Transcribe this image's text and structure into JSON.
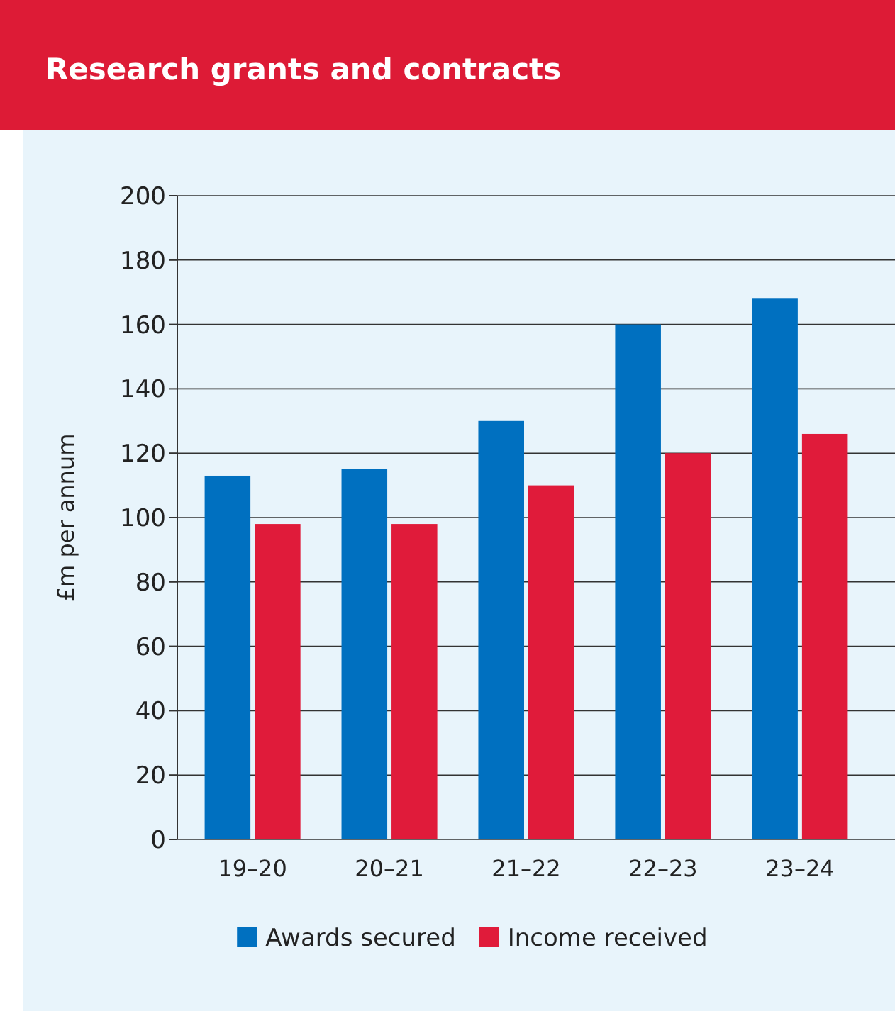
{
  "chart_data": {
    "type": "bar",
    "title": "Research grants and contracts",
    "ylabel": "£m per annum",
    "categories": [
      "19–20",
      "20–21",
      "21–22",
      "22–23",
      "23–24"
    ],
    "series": [
      {
        "name": "Awards secured",
        "color": "#0070c0",
        "values": [
          113,
          115,
          130,
          160,
          168
        ]
      },
      {
        "name": "Income received",
        "color": "#e01b3a",
        "values": [
          98,
          98,
          110,
          120,
          126
        ]
      }
    ],
    "ylim": [
      0,
      200
    ],
    "yticks": [
      0,
      20,
      40,
      60,
      80,
      100,
      120,
      140,
      160,
      180,
      200
    ],
    "grid": "y",
    "legend": "bottom"
  }
}
